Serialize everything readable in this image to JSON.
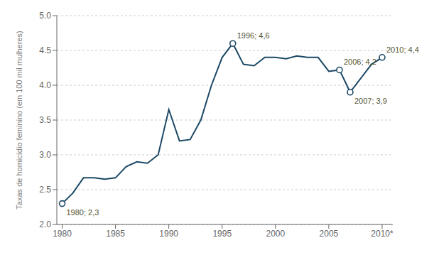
{
  "chart_data": {
    "type": "line",
    "y_label": "Taxas de homicídio feminino (em 100 mil mulheres)",
    "x": [
      1980,
      1981,
      1982,
      1983,
      1984,
      1985,
      1986,
      1987,
      1988,
      1989,
      1990,
      1991,
      1992,
      1993,
      1994,
      1995,
      1996,
      1997,
      1998,
      1999,
      2000,
      2001,
      2002,
      2003,
      2004,
      2005,
      2006,
      2007,
      2008,
      2009,
      2010
    ],
    "values": [
      2.3,
      2.45,
      2.67,
      2.67,
      2.65,
      2.67,
      2.83,
      2.9,
      2.88,
      3.0,
      3.65,
      3.2,
      3.22,
      3.5,
      4.0,
      4.4,
      4.6,
      4.3,
      4.28,
      4.4,
      4.4,
      4.38,
      4.42,
      4.4,
      4.4,
      4.2,
      4.22,
      3.9,
      4.1,
      4.3,
      4.4
    ],
    "color": "#1c4966",
    "xlim": [
      1979.5,
      2011.0
    ],
    "xticks": [
      1980,
      1985,
      1990,
      1995,
      2000,
      2005,
      {
        "value": 2010,
        "label": "2010*"
      }
    ],
    "ylim": [
      2.0,
      5.0
    ],
    "yticks": [
      {
        "value": 2,
        "label": "2.0"
      },
      2.5,
      {
        "value": 3,
        "label": "3.0"
      },
      3.5,
      {
        "value": 4,
        "label": "4.0"
      },
      4.5,
      {
        "value": 5,
        "label": "5.0"
      }
    ],
    "grid": "y",
    "annotations": [
      {
        "x": 1980,
        "y": 2.3,
        "text": "1980; 2,3"
      },
      {
        "x": 1996,
        "y": 4.6,
        "text": "1996; 4,6"
      },
      {
        "x": 2006,
        "y": 4.22,
        "text": "2006; 4,2"
      },
      {
        "x": 2007,
        "y": 3.9,
        "text": "2007; 3,9"
      },
      {
        "x": 2010,
        "y": 4.4,
        "text": "2010; 4,4"
      }
    ]
  }
}
